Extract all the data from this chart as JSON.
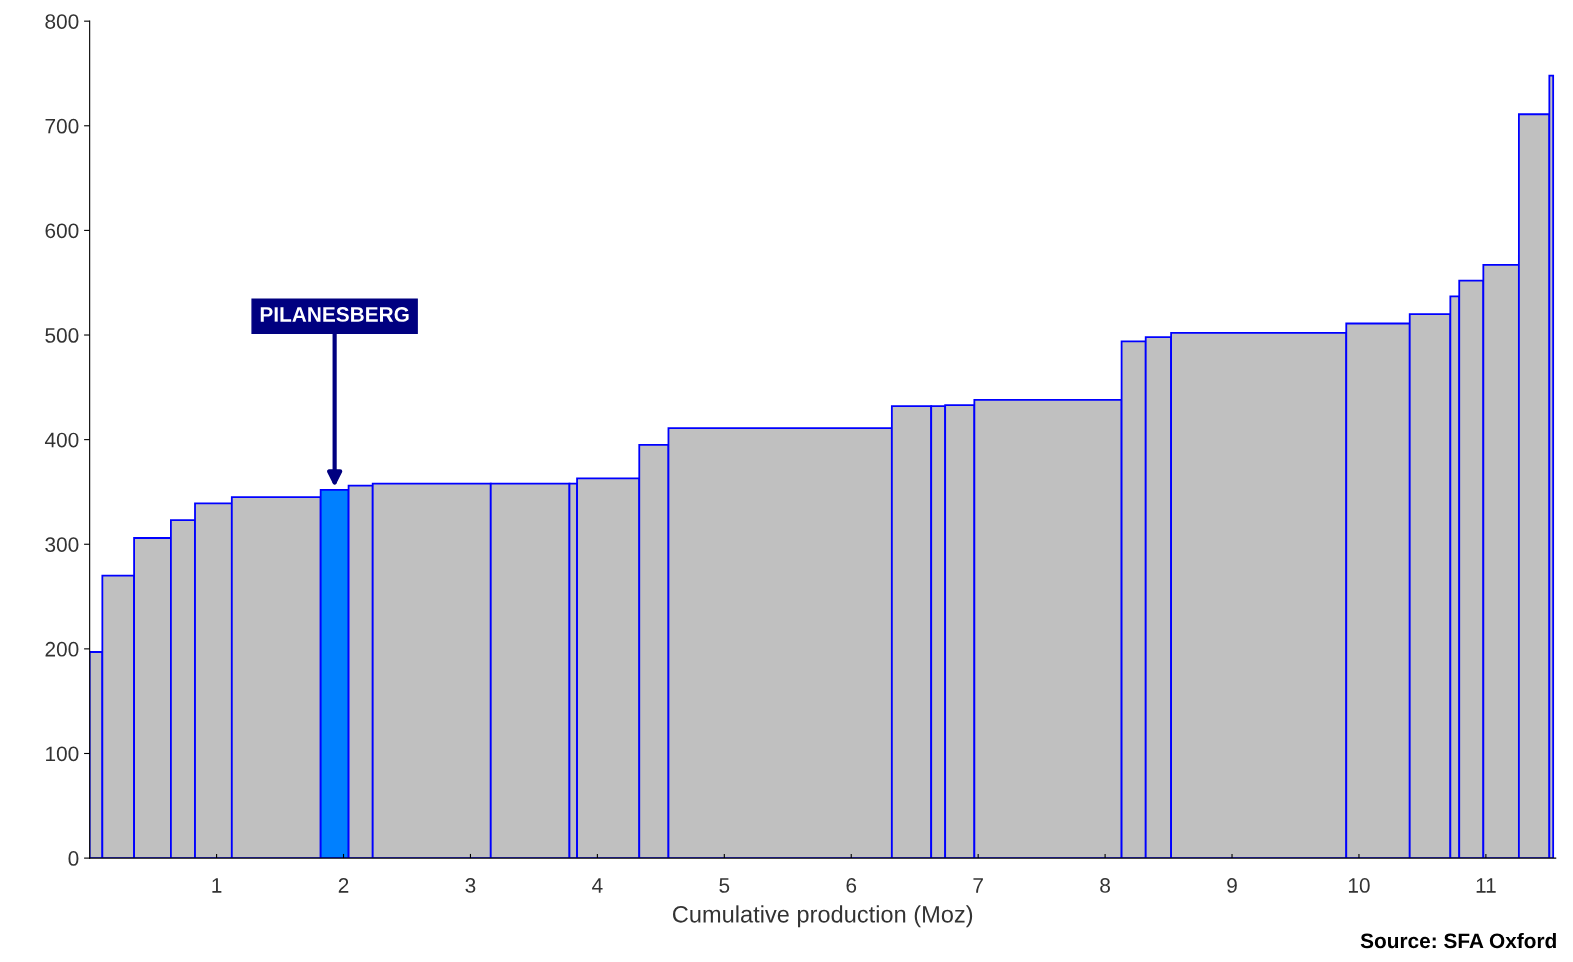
{
  "chart_data": {
    "type": "histogram",
    "bins": [
      0,
      0.1,
      0.35,
      0.64,
      0.83,
      1.12,
      1.82,
      2.04,
      2.23,
      3.16,
      3.78,
      3.84,
      4.33,
      4.56,
      6.32,
      6.63,
      6.74,
      6.97,
      8.13,
      8.32,
      8.52,
      9.9,
      10.4,
      10.72,
      10.79,
      10.98,
      11.26,
      11.5,
      11.53
    ],
    "values": [
      197,
      270,
      306,
      323,
      339,
      345,
      352,
      356,
      358,
      358,
      358,
      363,
      395,
      411,
      432,
      432,
      433,
      438,
      494,
      498,
      502,
      511,
      520,
      537,
      552,
      567,
      711,
      748
    ],
    "colors": [
      "#c0c0c0",
      "#c0c0c0",
      "#c0c0c0",
      "#c0c0c0",
      "#c0c0c0",
      "#c0c0c0",
      "#0080ff",
      "#c0c0c0",
      "#c0c0c0",
      "#c0c0c0",
      "#c0c0c0",
      "#c0c0c0",
      "#c0c0c0",
      "#c0c0c0",
      "#c0c0c0",
      "#c0c0c0",
      "#c0c0c0",
      "#c0c0c0",
      "#c0c0c0",
      "#c0c0c0",
      "#c0c0c0",
      "#c0c0c0",
      "#c0c0c0",
      "#c0c0c0",
      "#c0c0c0",
      "#c0c0c0",
      "#c0c0c0",
      "#c0c0c0"
    ],
    "xlabel": "Cumulative production (Moz)",
    "xlim": [
      0,
      11.55
    ],
    "ylim": [
      0,
      800
    ],
    "xticks": [
      1,
      2,
      3,
      4,
      5,
      6,
      7,
      8,
      9,
      10,
      11
    ],
    "yticks": [
      0,
      100,
      200,
      300,
      400,
      500,
      600,
      700,
      800
    ],
    "annotations": [
      {
        "text": "PILANESBERG",
        "x": 1.93,
        "y": 352
      },
      "Source: SFA Oxford"
    ]
  }
}
